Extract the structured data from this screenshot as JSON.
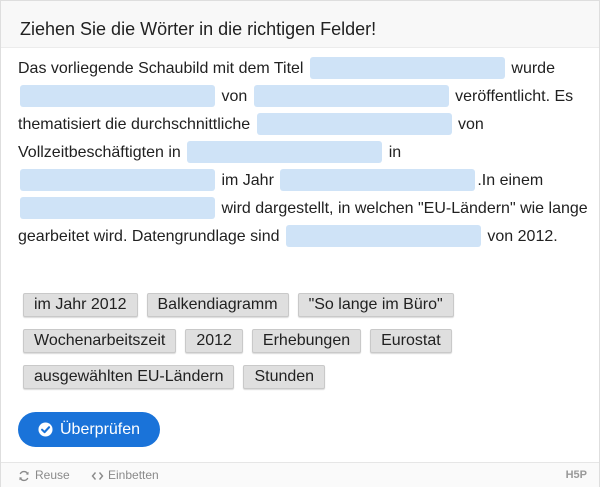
{
  "header": {
    "title": "Ziehen Sie die Wörter in die richtigen Felder!"
  },
  "task": {
    "t1": "Das vorliegende Schaubild mit dem Titel",
    "t2": "wurde",
    "t3": "von",
    "t4": "veröffentlicht. Es thematisiert die durchschnittliche",
    "t5": "von Vollzeitbeschäftigten in",
    "t6": "in",
    "t7": "im Jahr",
    "t8": ".In einem",
    "t9": "wird dargestellt, in welchen \"EU-Ländern\" wie lange gearbeitet wird. Datengrundlage sind",
    "t10": "von 2012."
  },
  "chips": [
    "im Jahr 2012",
    "Balkendiagramm",
    "\"So lange im Büro\"",
    "Wochenarbeitszeit",
    "2012",
    "Erhebungen",
    "Eurostat",
    "ausgewählten EU-Ländern",
    "Stunden"
  ],
  "buttons": {
    "check": "Überprüfen"
  },
  "footer": {
    "reuse": "Reuse",
    "embed": "Einbetten",
    "logo": "H5P"
  },
  "colors": {
    "dropzone": "#cfe3f7",
    "accent": "#1a73d9",
    "chip": "#dfdfdf"
  }
}
